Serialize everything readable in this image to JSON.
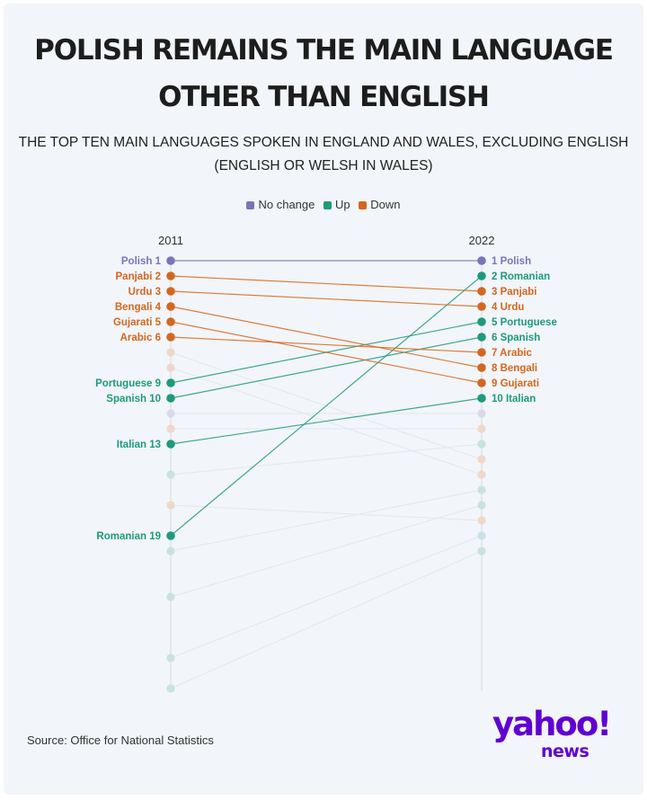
{
  "title_line1": "POLISH REMAINS THE MAIN LANGUAGE",
  "title_line2": "OTHER THAN ENGLISH",
  "subtitle_line1": "THE TOP TEN MAIN LANGUAGES SPOKEN IN ENGLAND AND WALES, EXCLUDING ENGLISH",
  "subtitle_line2": "(ENGLISH OR WELSH IN WALES)",
  "legend": [
    {
      "label": "No change",
      "color": "#7b74b8"
    },
    {
      "label": "Up",
      "color": "#1e9a7c"
    },
    {
      "label": "Down",
      "color": "#d4671f"
    }
  ],
  "source": "Source: Office for National Statistics",
  "logo": {
    "main": "yahoo!",
    "sub": "news"
  },
  "colors": {
    "no_change": "#7b74b8",
    "up": "#1e9a7c",
    "down": "#d4671f",
    "faded_up": "#c9e3dc",
    "faded_down": "#eed8c9",
    "faded_no_change": "#d8d9ea",
    "track": "#dde2ea"
  },
  "chart_data": {
    "type": "slope",
    "x": [
      "2011",
      "2022"
    ],
    "ranks_shown": 28,
    "series": [
      {
        "name": "Polish",
        "rank_2011": 1,
        "rank_2022": 1,
        "change": "no change"
      },
      {
        "name": "Romanian",
        "rank_2011": 19,
        "rank_2022": 2,
        "change": "up"
      },
      {
        "name": "Panjabi",
        "rank_2011": 2,
        "rank_2022": 3,
        "change": "down"
      },
      {
        "name": "Urdu",
        "rank_2011": 3,
        "rank_2022": 4,
        "change": "down"
      },
      {
        "name": "Portuguese",
        "rank_2011": 9,
        "rank_2022": 5,
        "change": "up"
      },
      {
        "name": "Spanish",
        "rank_2011": 10,
        "rank_2022": 6,
        "change": "up"
      },
      {
        "name": "Arabic",
        "rank_2011": 6,
        "rank_2022": 7,
        "change": "down"
      },
      {
        "name": "Bengali",
        "rank_2011": 4,
        "rank_2022": 8,
        "change": "down"
      },
      {
        "name": "Gujarati",
        "rank_2011": 5,
        "rank_2022": 9,
        "change": "down"
      },
      {
        "name": "Italian",
        "rank_2011": 13,
        "rank_2022": 10,
        "change": "up"
      }
    ],
    "background_dots_2011": [
      {
        "rank": 7,
        "change": "down"
      },
      {
        "rank": 8,
        "change": "down"
      },
      {
        "rank": 11,
        "change": "no change"
      },
      {
        "rank": 12,
        "change": "down"
      },
      {
        "rank": 15,
        "change": "up"
      },
      {
        "rank": 17,
        "change": "down"
      },
      {
        "rank": 20,
        "change": "up"
      },
      {
        "rank": 23,
        "change": "up"
      },
      {
        "rank": 27,
        "change": "up"
      },
      {
        "rank": 29,
        "change": "up"
      }
    ],
    "background_dots_2022": [
      {
        "rank": 11,
        "change": "no change"
      },
      {
        "rank": 12,
        "change": "down"
      },
      {
        "rank": 13,
        "change": "up"
      },
      {
        "rank": 14,
        "change": "down"
      },
      {
        "rank": 15,
        "change": "down"
      },
      {
        "rank": 16,
        "change": "up"
      },
      {
        "rank": 17,
        "change": "up"
      },
      {
        "rank": 18,
        "change": "down"
      },
      {
        "rank": 19,
        "change": "up"
      },
      {
        "rank": 20,
        "change": "up"
      }
    ],
    "background_links": [
      [
        7,
        14
      ],
      [
        8,
        15
      ],
      [
        11,
        11
      ],
      [
        12,
        12
      ],
      [
        15,
        13
      ],
      [
        17,
        18
      ],
      [
        20,
        16
      ],
      [
        23,
        17
      ],
      [
        27,
        19
      ],
      [
        29,
        20
      ]
    ]
  }
}
